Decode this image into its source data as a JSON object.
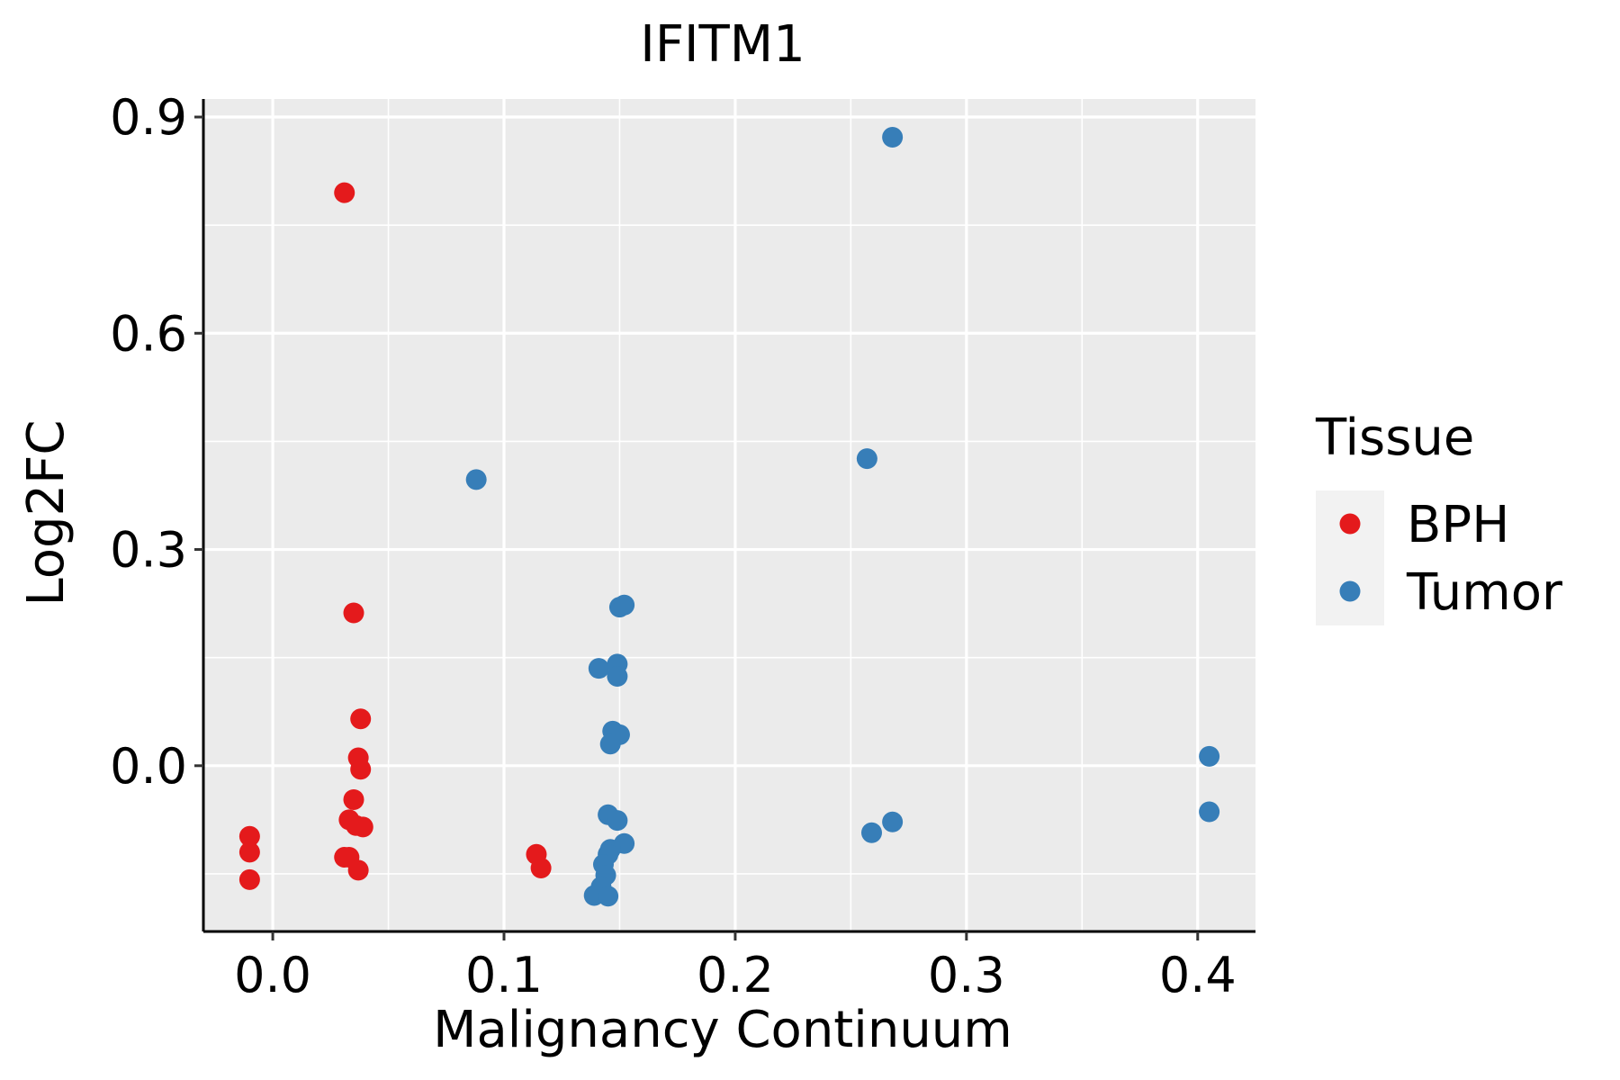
{
  "chart_data": {
    "type": "scatter",
    "title": "IFITM1",
    "xlabel": "Malignancy Continuum",
    "ylabel": "Log2FC",
    "xlim": [
      -0.03,
      0.425
    ],
    "ylim": [
      -0.23,
      0.925
    ],
    "x_ticks": [
      0.0,
      0.1,
      0.2,
      0.3,
      0.4
    ],
    "x_tick_labels": [
      "0.0",
      "0.1",
      "0.2",
      "0.3",
      "0.4"
    ],
    "y_ticks": [
      0.0,
      0.3,
      0.6,
      0.9
    ],
    "y_tick_labels": [
      "0.0",
      "0.3",
      "0.6",
      "0.9"
    ],
    "grid": true,
    "legend": {
      "title": "Tissue",
      "position": "right",
      "entries": [
        {
          "label": "BPH",
          "color": "#E41A1C"
        },
        {
          "label": "Tumor",
          "color": "#377EB8"
        }
      ]
    },
    "series": [
      {
        "name": "BPH",
        "color": "#E41A1C",
        "points": [
          [
            -0.01,
            -0.098
          ],
          [
            -0.01,
            -0.12
          ],
          [
            -0.01,
            -0.158
          ],
          [
            0.031,
            0.795
          ],
          [
            0.035,
            0.212
          ],
          [
            0.038,
            0.065
          ],
          [
            0.037,
            0.011
          ],
          [
            0.038,
            -0.005
          ],
          [
            0.035,
            -0.047
          ],
          [
            0.033,
            -0.075
          ],
          [
            0.036,
            -0.083
          ],
          [
            0.039,
            -0.085
          ],
          [
            0.031,
            -0.127
          ],
          [
            0.033,
            -0.127
          ],
          [
            0.037,
            -0.145
          ],
          [
            0.114,
            -0.123
          ],
          [
            0.116,
            -0.142
          ]
        ]
      },
      {
        "name": "Tumor",
        "color": "#377EB8",
        "points": [
          [
            0.268,
            0.872
          ],
          [
            0.257,
            0.426
          ],
          [
            0.088,
            0.397
          ],
          [
            0.15,
            0.22
          ],
          [
            0.152,
            0.223
          ],
          [
            0.141,
            0.135
          ],
          [
            0.149,
            0.141
          ],
          [
            0.149,
            0.124
          ],
          [
            0.147,
            0.048
          ],
          [
            0.15,
            0.043
          ],
          [
            0.146,
            0.03
          ],
          [
            0.145,
            -0.068
          ],
          [
            0.149,
            -0.076
          ],
          [
            0.152,
            -0.108
          ],
          [
            0.146,
            -0.116
          ],
          [
            0.145,
            -0.123
          ],
          [
            0.143,
            -0.137
          ],
          [
            0.144,
            -0.152
          ],
          [
            0.142,
            -0.168
          ],
          [
            0.139,
            -0.18
          ],
          [
            0.145,
            -0.181
          ],
          [
            0.405,
            0.013
          ],
          [
            0.405,
            -0.064
          ],
          [
            0.268,
            -0.078
          ],
          [
            0.259,
            -0.093
          ]
        ]
      }
    ]
  }
}
